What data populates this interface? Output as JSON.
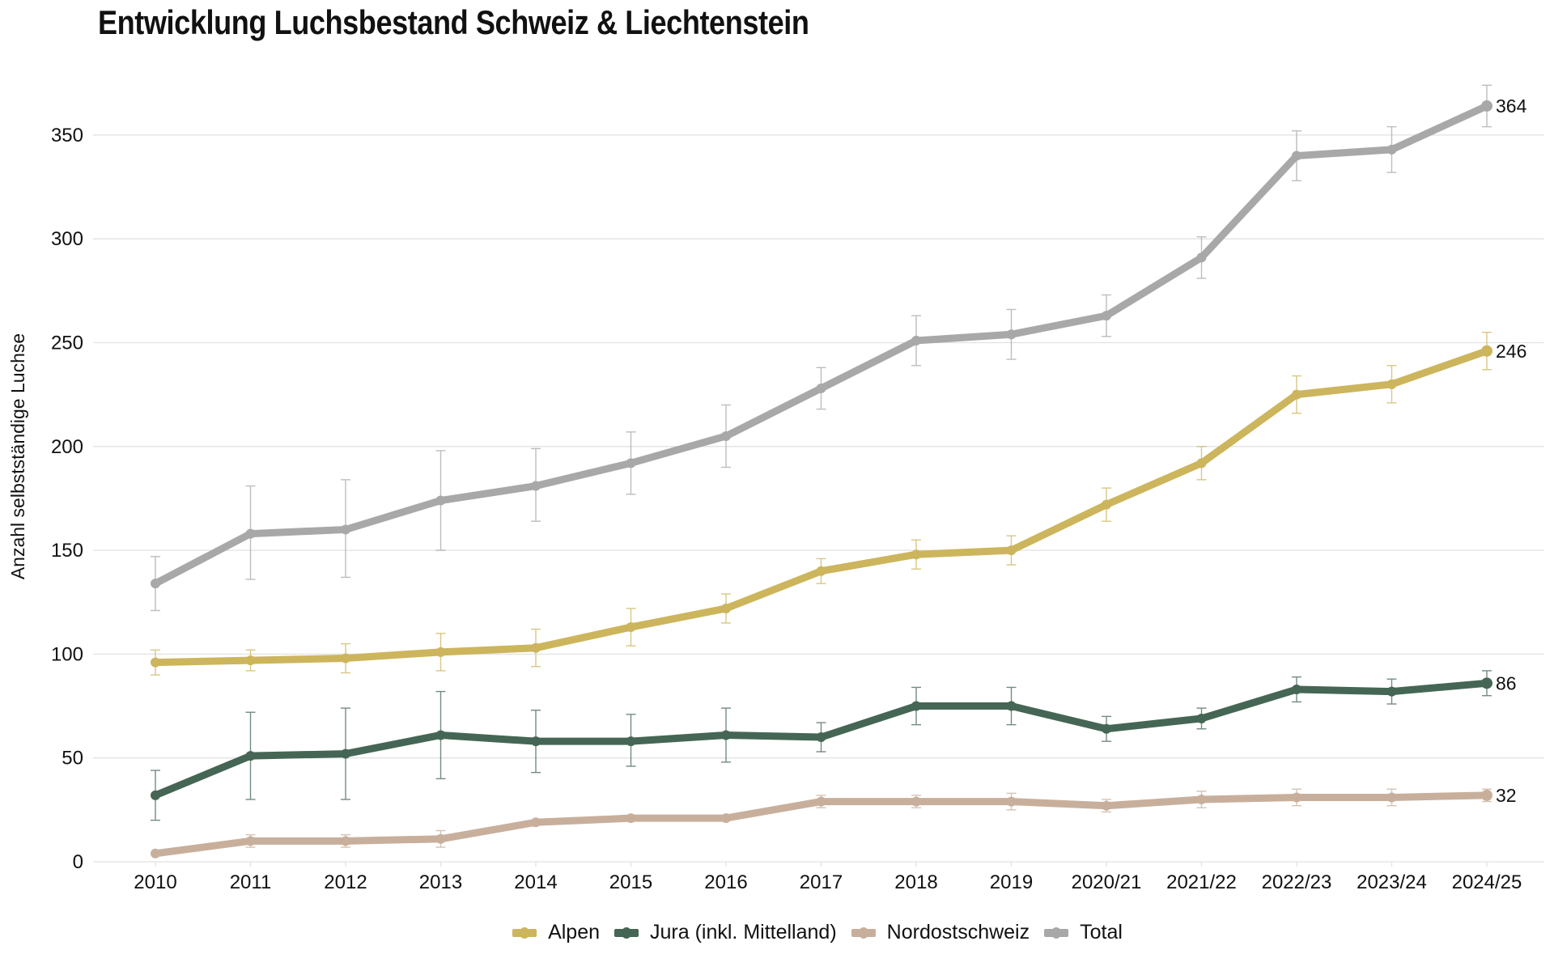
{
  "chart_data": {
    "type": "line",
    "title": "Entwicklung Luchsbestand Schweiz & Liechtenstein",
    "xlabel": "",
    "ylabel": "Anzahl selbstständige Luchse",
    "ylim": [
      0,
      370
    ],
    "yticks": [
      0,
      50,
      100,
      150,
      200,
      250,
      300,
      350
    ],
    "grid": true,
    "legend_position": "bottom-center",
    "categories": [
      "2010",
      "2011",
      "2012",
      "2013",
      "2014",
      "2015",
      "2016",
      "2017",
      "2018",
      "2019",
      "2020/21",
      "2021/22",
      "2022/23",
      "2023/24",
      "2024/25"
    ],
    "series": [
      {
        "name": "Total",
        "color": "#a8a8a8",
        "values": [
          134,
          158,
          160,
          174,
          181,
          192,
          205,
          228,
          251,
          254,
          263,
          291,
          340,
          343,
          364
        ],
        "error_low": [
          121,
          136,
          137,
          150,
          164,
          177,
          190,
          218,
          239,
          242,
          253,
          281,
          328,
          332,
          354
        ],
        "error_high": [
          147,
          181,
          184,
          198,
          199,
          207,
          220,
          238,
          263,
          266,
          273,
          301,
          352,
          354,
          374
        ],
        "end_label": "364"
      },
      {
        "name": "Alpen",
        "color": "#ccb55c",
        "values": [
          96,
          97,
          98,
          101,
          103,
          113,
          122,
          140,
          148,
          150,
          172,
          192,
          225,
          230,
          246
        ],
        "error_low": [
          90,
          92,
          91,
          92,
          94,
          104,
          115,
          134,
          141,
          143,
          164,
          184,
          216,
          221,
          237
        ],
        "error_high": [
          102,
          102,
          105,
          110,
          112,
          122,
          129,
          146,
          155,
          157,
          180,
          200,
          234,
          239,
          255
        ],
        "end_label": "246"
      },
      {
        "name": "Jura (inkl. Mittelland)",
        "color": "#456654",
        "values": [
          32,
          51,
          52,
          61,
          58,
          58,
          61,
          60,
          75,
          75,
          64,
          69,
          83,
          82,
          86
        ],
        "error_low": [
          20,
          30,
          30,
          40,
          43,
          46,
          48,
          53,
          66,
          66,
          58,
          64,
          77,
          76,
          80
        ],
        "error_high": [
          44,
          72,
          74,
          82,
          73,
          71,
          74,
          67,
          84,
          84,
          70,
          74,
          89,
          88,
          92
        ],
        "end_label": "86"
      },
      {
        "name": "Nordostschweiz",
        "color": "#c8af9c",
        "values": [
          4,
          10,
          10,
          11,
          19,
          21,
          21,
          29,
          29,
          29,
          27,
          30,
          31,
          31,
          32
        ],
        "error_low": [
          4,
          7,
          7,
          7,
          19,
          21,
          21,
          26,
          26,
          25,
          24,
          26,
          27,
          27,
          29
        ],
        "error_high": [
          4,
          13,
          13,
          15,
          19,
          21,
          21,
          32,
          32,
          33,
          30,
          34,
          35,
          35,
          35
        ],
        "end_label": "32"
      }
    ]
  },
  "legend": {
    "items": [
      {
        "label": "Alpen",
        "color": "#ccb55c"
      },
      {
        "label": "Jura (inkl. Mittelland)",
        "color": "#456654"
      },
      {
        "label": "Nordostschweiz",
        "color": "#c8af9c"
      },
      {
        "label": "Total",
        "color": "#a8a8a8"
      }
    ]
  }
}
